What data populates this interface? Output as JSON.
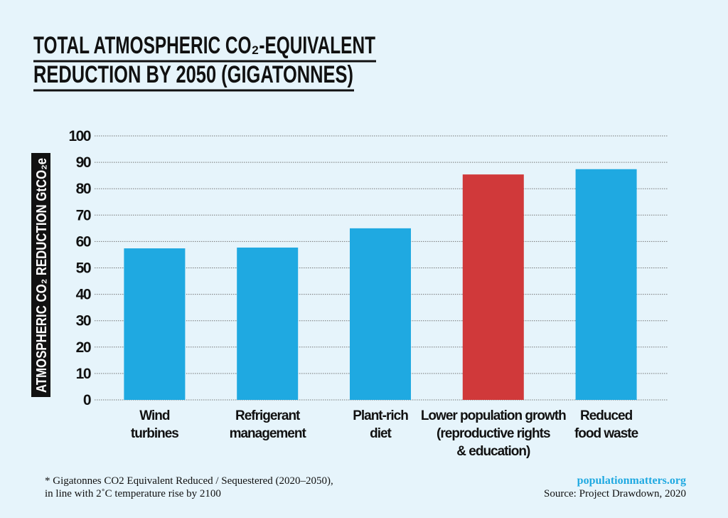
{
  "chart_data": {
    "type": "bar",
    "title_lines": [
      "TOTAL ATMOSPHERIC CO₂-EQUIVALENT",
      "REDUCTION BY 2050 (GIGATONNES)"
    ],
    "y_label": "ATMOSPHERIC CO₂ REDUCTION GtCO₂e",
    "categories": [
      [
        "Wind",
        "turbines"
      ],
      [
        "Refrigerant",
        "management"
      ],
      [
        "Plant-rich",
        "diet"
      ],
      [
        "Lower population growth",
        "(reproductive rights",
        "& education)"
      ],
      [
        "Reduced",
        "food waste"
      ]
    ],
    "values": [
      57.4,
      57.7,
      65.0,
      85.4,
      87.4
    ],
    "colors": [
      "#1fa9e1",
      "#1fa9e1",
      "#1fa9e1",
      "#d0393a",
      "#1fa9e1"
    ],
    "ylim": [
      0,
      100
    ],
    "yticks": [
      0,
      10,
      20,
      30,
      40,
      50,
      60,
      70,
      80,
      90,
      100
    ],
    "grid": true,
    "footnote": [
      "* Gigatonnes CO2 Equivalent Reduced / Sequestered (2020–2050),",
      "in line with 2˚C temperature rise by 2100"
    ],
    "website": "populationmatters.org",
    "source": "Source: Project Drawdown, 2020"
  }
}
